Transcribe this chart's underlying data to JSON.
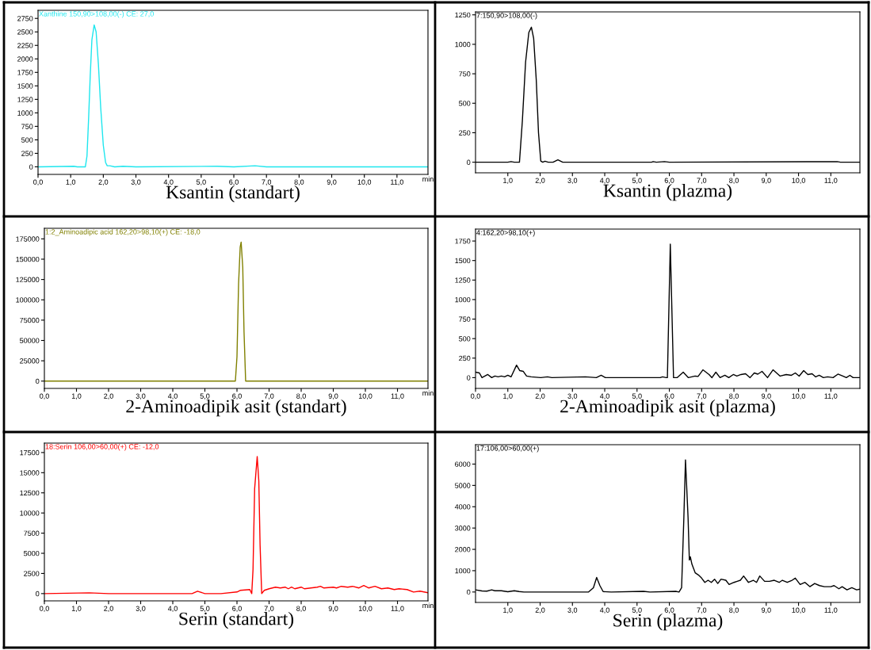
{
  "chart_data": [
    {
      "type": "line",
      "title": "Ksantin (standart)",
      "annotations": [
        "Xanthine 150,90>108,00(-) CE: 27,0"
      ],
      "xlabel": "min",
      "x": [
        0,
        1.1,
        1.2,
        1.45,
        1.5,
        1.55,
        1.6,
        1.65,
        1.72,
        1.78,
        1.85,
        1.92,
        2.0,
        2.07,
        2.12,
        2.2,
        2.35,
        2.6,
        3.0,
        5.5,
        6.0,
        6.65,
        7.0,
        11.95
      ],
      "series": [
        {
          "color": "#1ee6ee",
          "values": [
            0,
            10,
            0,
            0,
            200,
            900,
            1700,
            2350,
            2630,
            2500,
            1900,
            1100,
            400,
            80,
            20,
            20,
            0,
            10,
            0,
            10,
            0,
            20,
            0,
            0
          ]
        }
      ],
      "xlim": [
        0,
        11.95
      ],
      "ylim": [
        -140,
        2900
      ],
      "xticks": [
        {
          "value": 0,
          "label": "0,0"
        },
        {
          "value": 1,
          "label": "1,0"
        },
        {
          "value": 2,
          "label": "2,0"
        },
        {
          "value": 3,
          "label": "3,0"
        },
        {
          "value": 4,
          "label": "4,0"
        },
        {
          "value": 5,
          "label": "5,0"
        },
        {
          "value": 6,
          "label": "6,0"
        },
        {
          "value": 7,
          "label": "7,0"
        },
        {
          "value": 8,
          "label": "8,0"
        },
        {
          "value": 9,
          "label": "9,0"
        },
        {
          "value": 10,
          "label": "10,0"
        },
        {
          "value": 11,
          "label": "11,0"
        }
      ],
      "yticks": [
        0,
        250,
        500,
        750,
        1000,
        1250,
        1500,
        1750,
        2000,
        2250,
        2500,
        2750
      ]
    },
    {
      "type": "line",
      "title": "Ksantin (plazma)",
      "annotations": [
        "7:150,90>108,00(-)"
      ],
      "x": [
        0,
        1.0,
        1.1,
        1.2,
        1.36,
        1.45,
        1.55,
        1.65,
        1.73,
        1.8,
        1.88,
        1.95,
        2.02,
        2.08,
        2.15,
        2.25,
        2.4,
        2.55,
        2.7,
        5.45,
        5.5,
        5.6,
        5.85,
        6.0,
        11.2,
        11.3,
        11.9
      ],
      "series": [
        {
          "color": "#000000",
          "values": [
            0,
            0,
            5,
            0,
            0,
            350,
            850,
            1100,
            1145,
            1050,
            700,
            250,
            10,
            0,
            8,
            0,
            0,
            20,
            0,
            0,
            5,
            0,
            5,
            0,
            5,
            0,
            0
          ]
        }
      ],
      "xlim": [
        0,
        11.9
      ],
      "ylim": [
        -90,
        1275
      ],
      "xticks": [
        {
          "value": 1,
          "label": "1,0"
        },
        {
          "value": 2,
          "label": "2,0"
        },
        {
          "value": 3,
          "label": "3,0"
        },
        {
          "value": 4,
          "label": "4,0"
        },
        {
          "value": 5,
          "label": "5,0"
        },
        {
          "value": 6,
          "label": "6,0"
        },
        {
          "value": 7,
          "label": "7,0"
        },
        {
          "value": 8,
          "label": "8,0"
        },
        {
          "value": 9,
          "label": "9,0"
        },
        {
          "value": 10,
          "label": "10,0"
        },
        {
          "value": 11,
          "label": "11,0"
        }
      ],
      "yticks": [
        0,
        250,
        500,
        750,
        1000,
        1250
      ]
    },
    {
      "type": "line",
      "title": "2-Aminoadipik asit (standart)",
      "annotations": [
        "1:2_Aminoadipic acid 162,20>98,10(+) CE: -18,0"
      ],
      "xlabel": "min",
      "x": [
        0,
        5.95,
        6.0,
        6.05,
        6.1,
        6.13,
        6.18,
        6.22,
        6.27,
        6.35,
        11.95
      ],
      "series": [
        {
          "color": "#808000",
          "values": [
            0,
            0,
            30000,
            120000,
            165000,
            171000,
            140000,
            60000,
            0,
            0,
            0
          ]
        }
      ],
      "xlim": [
        0,
        11.95
      ],
      "ylim": [
        -9000,
        188000
      ],
      "xticks": [
        {
          "value": 0,
          "label": "0,0"
        },
        {
          "value": 1,
          "label": "1,0"
        },
        {
          "value": 2,
          "label": "2,0"
        },
        {
          "value": 3,
          "label": "3,0"
        },
        {
          "value": 4,
          "label": "4,0"
        },
        {
          "value": 5,
          "label": "5,0"
        },
        {
          "value": 6,
          "label": "6,0"
        },
        {
          "value": 7,
          "label": "7,0"
        },
        {
          "value": 8,
          "label": "8,0"
        },
        {
          "value": 9,
          "label": "9,0"
        },
        {
          "value": 10,
          "label": "10,0"
        },
        {
          "value": 11,
          "label": "11,0"
        }
      ],
      "yticks": [
        0,
        25000,
        50000,
        75000,
        100000,
        125000,
        150000,
        175000
      ]
    },
    {
      "type": "line",
      "title": "2-Aminoadipik asit (plazma)",
      "annotations": [
        "4:162,20>98,10(+)"
      ],
      "x": [
        0,
        0.12,
        0.2,
        0.38,
        0.5,
        0.6,
        0.7,
        0.8,
        0.9,
        1.0,
        1.1,
        1.27,
        1.37,
        1.48,
        1.58,
        1.72,
        2.02,
        2.23,
        2.36,
        3.4,
        3.74,
        3.89,
        4.02,
        5.72,
        5.79,
        5.9,
        5.94,
        6.03,
        6.13,
        6.24,
        6.43,
        6.59,
        6.8,
        6.89,
        7.04,
        7.23,
        7.32,
        7.44,
        7.57,
        7.72,
        7.84,
        7.98,
        8.09,
        8.22,
        8.36,
        8.5,
        8.63,
        8.74,
        8.87,
        9.04,
        9.21,
        9.43,
        9.62,
        9.78,
        9.9,
        10.02,
        10.16,
        10.29,
        10.42,
        10.53,
        10.64,
        10.77,
        10.9,
        11.07,
        11.22,
        11.37,
        11.48,
        11.59,
        11.69,
        11.9
      ],
      "series": [
        {
          "color": "#000000",
          "values": [
            70,
            60,
            0,
            40,
            0,
            20,
            10,
            20,
            10,
            30,
            10,
            160,
            90,
            80,
            20,
            10,
            0,
            10,
            0,
            10,
            0,
            30,
            0,
            0,
            10,
            0,
            0,
            1710,
            0,
            0,
            70,
            0,
            20,
            15,
            100,
            40,
            0,
            70,
            0,
            30,
            0,
            40,
            20,
            40,
            50,
            0,
            60,
            45,
            80,
            0,
            100,
            20,
            40,
            30,
            60,
            20,
            90,
            40,
            50,
            10,
            30,
            0,
            10,
            0,
            45,
            20,
            0,
            30,
            0,
            0
          ]
        }
      ],
      "xlim": [
        0,
        11.9
      ],
      "ylim": [
        -138,
        1903
      ],
      "xticks": [
        {
          "value": 0,
          "label": "0,0"
        },
        {
          "value": 1,
          "label": "1,0"
        },
        {
          "value": 2,
          "label": "2,0"
        },
        {
          "value": 3,
          "label": "3,0"
        },
        {
          "value": 4,
          "label": "4,0"
        },
        {
          "value": 5,
          "label": "5,0"
        },
        {
          "value": 6,
          "label": "6,0"
        },
        {
          "value": 7,
          "label": "7,0"
        },
        {
          "value": 8,
          "label": "8,0"
        },
        {
          "value": 9,
          "label": "9,0"
        },
        {
          "value": 10,
          "label": "10,0"
        },
        {
          "value": 11,
          "label": "11,0"
        }
      ],
      "yticks": [
        0,
        250,
        500,
        750,
        1000,
        1250,
        1500,
        1750
      ]
    },
    {
      "type": "line",
      "title": "Serin (standart)",
      "annotations": [
        "18:Serin 106,00>60,00(+) CE: -12,0"
      ],
      "xlabel": "min",
      "x": [
        0,
        1.4,
        2.0,
        4.6,
        4.77,
        5.0,
        5.5,
        6.0,
        6.1,
        6.4,
        6.46,
        6.5,
        6.55,
        6.63,
        6.68,
        6.72,
        6.77,
        6.85,
        7.0,
        7.2,
        7.35,
        7.5,
        7.6,
        7.7,
        7.8,
        8.0,
        8.1,
        8.3,
        8.5,
        8.6,
        8.7,
        9.0,
        9.1,
        9.25,
        9.45,
        9.6,
        9.8,
        9.95,
        10.1,
        10.3,
        10.5,
        10.7,
        10.9,
        11.05,
        11.3,
        11.5,
        11.7,
        11.95
      ],
      "series": [
        {
          "color": "#ff0000",
          "values": [
            0,
            100,
            0,
            0,
            300,
            0,
            0,
            200,
            400,
            500,
            0,
            3000,
            13000,
            17000,
            14000,
            6000,
            0,
            400,
            600,
            800,
            700,
            800,
            600,
            800,
            600,
            800,
            600,
            700,
            800,
            900,
            700,
            800,
            700,
            900,
            800,
            900,
            700,
            1000,
            700,
            900,
            600,
            700,
            500,
            600,
            500,
            200,
            300,
            100
          ]
        }
      ],
      "xlim": [
        0,
        11.95
      ],
      "ylim": [
        -900,
        18670
      ],
      "xticks": [
        {
          "value": 0,
          "label": "0,0"
        },
        {
          "value": 1,
          "label": "1,0"
        },
        {
          "value": 2,
          "label": "2,0"
        },
        {
          "value": 3,
          "label": "3,0"
        },
        {
          "value": 4,
          "label": "4,0"
        },
        {
          "value": 5,
          "label": "5,0"
        },
        {
          "value": 6,
          "label": "6,0"
        },
        {
          "value": 7,
          "label": "7,0"
        },
        {
          "value": 8,
          "label": "8,0"
        },
        {
          "value": 9,
          "label": "9,0"
        },
        {
          "value": 10,
          "label": "10,0"
        },
        {
          "value": 11,
          "label": "11,0"
        }
      ],
      "yticks": [
        0,
        2500,
        5000,
        7500,
        10000,
        12500,
        15000,
        17500
      ]
    },
    {
      "type": "line",
      "title": "Serin (plazma)",
      "annotations": [
        "17:106,00>60,00(+)"
      ],
      "x": [
        0,
        0.2,
        0.35,
        0.5,
        0.6,
        0.8,
        1.0,
        1.2,
        1.35,
        1.5,
        3.5,
        3.65,
        3.75,
        3.85,
        3.95,
        4.2,
        5.2,
        5.4,
        6.2,
        6.3,
        6.38,
        6.45,
        6.5,
        6.58,
        6.62,
        6.65,
        6.7,
        6.8,
        6.9,
        7.0,
        7.1,
        7.2,
        7.3,
        7.4,
        7.5,
        7.6,
        7.75,
        7.85,
        8.0,
        8.1,
        8.2,
        8.3,
        8.45,
        8.6,
        8.7,
        8.8,
        8.95,
        9.1,
        9.25,
        9.4,
        9.5,
        9.65,
        9.8,
        9.9,
        10.05,
        10.2,
        10.35,
        10.5,
        10.65,
        10.8,
        11.0,
        11.1,
        11.25,
        11.35,
        11.5,
        11.65,
        11.8,
        11.9
      ],
      "series": [
        {
          "color": "#000000",
          "values": [
            100,
            50,
            40,
            100,
            60,
            60,
            10,
            60,
            20,
            0,
            0,
            200,
            680,
            300,
            20,
            0,
            30,
            0,
            30,
            0,
            200,
            3500,
            6200,
            3500,
            1500,
            1650,
            1300,
            900,
            800,
            650,
            450,
            550,
            450,
            600,
            400,
            600,
            550,
            350,
            450,
            500,
            550,
            750,
            450,
            550,
            450,
            750,
            500,
            500,
            550,
            450,
            550,
            450,
            550,
            650,
            350,
            450,
            250,
            400,
            300,
            250,
            250,
            300,
            150,
            250,
            100,
            200,
            100,
            130
          ]
        }
      ],
      "xlim": [
        0,
        11.9
      ],
      "ylim": [
        -490,
        6910
      ],
      "xticks": [
        {
          "value": 1,
          "label": "1,0"
        },
        {
          "value": 2,
          "label": "2,0"
        },
        {
          "value": 3,
          "label": "3,0"
        },
        {
          "value": 4,
          "label": "4,0"
        },
        {
          "value": 5,
          "label": "5,0"
        },
        {
          "value": 6,
          "label": "6,0"
        },
        {
          "value": 7,
          "label": "7,0"
        },
        {
          "value": 8,
          "label": "8,0"
        },
        {
          "value": 9,
          "label": "9,0"
        },
        {
          "value": 10,
          "label": "10,0"
        },
        {
          "value": 11,
          "label": "11,0"
        }
      ],
      "yticks": [
        0,
        1000,
        2000,
        3000,
        4000,
        5000,
        6000
      ]
    }
  ]
}
